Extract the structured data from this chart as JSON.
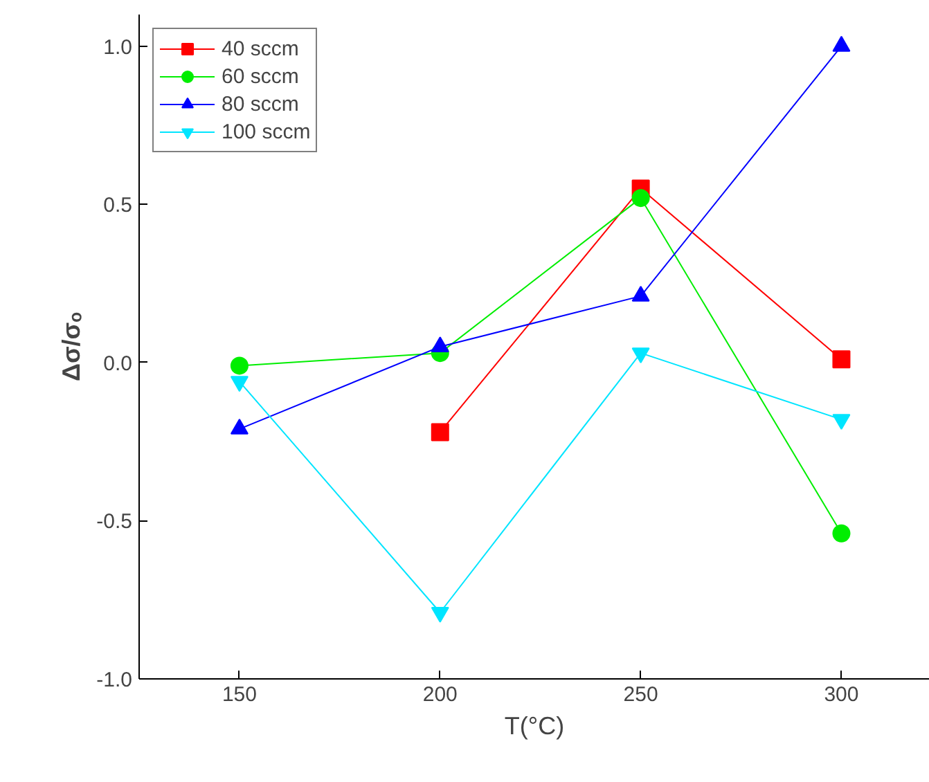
{
  "chart_data": {
    "type": "line",
    "xlabel": "T(°C)",
    "ylabel": "Δσ/σₒ",
    "x": [
      150,
      200,
      250,
      300
    ],
    "xlim": [
      125,
      322
    ],
    "ylim": [
      -1.0,
      1.1
    ],
    "xticks": [
      150,
      200,
      250,
      300
    ],
    "yticks": [
      {
        "value": -1.0,
        "label": "-1.0"
      },
      {
        "value": -0.5,
        "label": "-0.5"
      },
      {
        "value": 0.0,
        "label": "0.0"
      },
      {
        "value": 0.5,
        "label": "0.5"
      },
      {
        "value": 1.0,
        "label": "1.0"
      }
    ],
    "grid": false,
    "legend": "top left",
    "series": [
      {
        "name": "40 sccm",
        "color": "#ff0000",
        "marker": "square",
        "values": [
          null,
          -0.22,
          0.55,
          0.01
        ]
      },
      {
        "name": "60 sccm",
        "color": "#00ee00",
        "marker": "circle",
        "values": [
          -0.01,
          0.03,
          0.52,
          -0.54
        ]
      },
      {
        "name": "80 sccm",
        "color": "#0000ff",
        "marker": "triangle",
        "values": [
          -0.21,
          0.05,
          0.21,
          1.0
        ]
      },
      {
        "name": "100 sccm",
        "color": "#00e5ff",
        "marker": "triangle",
        "values": [
          -0.06,
          -0.79,
          0.03,
          -0.18
        ]
      }
    ]
  }
}
